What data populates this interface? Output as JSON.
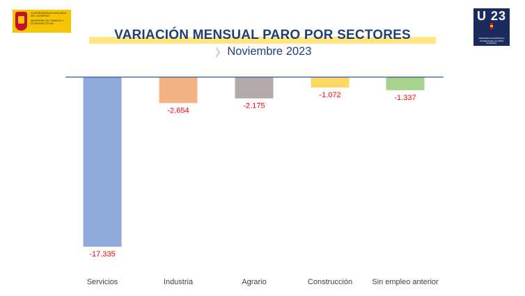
{
  "header": {
    "left_logo_line1": "Vicepresidencia Segunda del Gobierno",
    "left_logo_line2": "Ministerio de Trabajo y Economía Social",
    "right_logo_text": "U 23",
    "right_logo_sub": "Presidencia Española Consejo de la Unión Europea"
  },
  "chart_data": {
    "type": "bar",
    "title": "VARIACIÓN MENSUAL PARO POR SECTORES",
    "subtitle": "Noviembre 2023",
    "categories": [
      "Servicios",
      "Industria",
      "Agrario",
      "Construcción",
      "Sin empleo anterior"
    ],
    "values": [
      -17335,
      -2654,
      -2175,
      -1072,
      -1337
    ],
    "value_labels": [
      "-17.335",
      "-2.654",
      "-2.175",
      "-1.072",
      "-1.337"
    ],
    "colors": [
      "#8faadc",
      "#f4b183",
      "#b1aaa9",
      "#ffd966",
      "#a9d18e"
    ],
    "ylim": [
      -17335,
      0
    ],
    "label_color": "#ff0000",
    "axis_color": "#2f5597",
    "grid": false,
    "legend": "none"
  }
}
